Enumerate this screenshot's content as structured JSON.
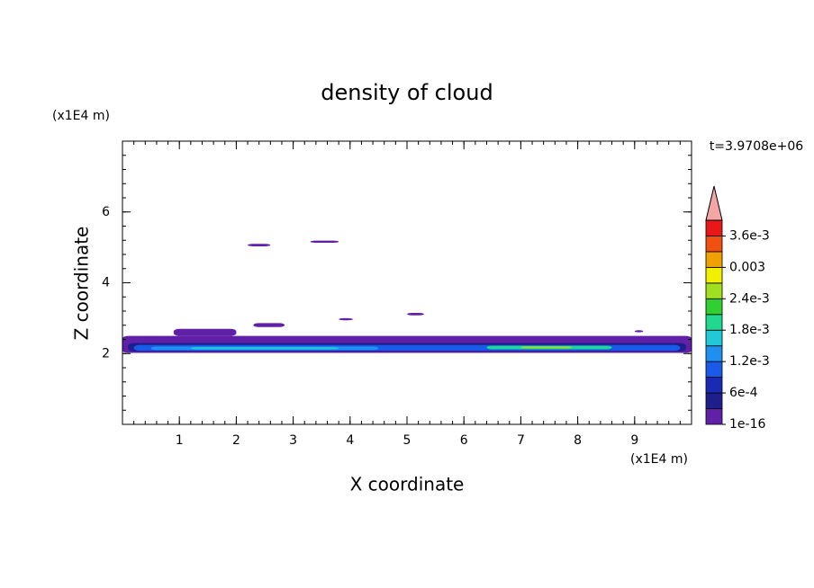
{
  "chart_data": {
    "type": "contour",
    "title": "density of cloud",
    "x_label": "X coordinate",
    "y_label": "Z coordinate",
    "x_unit": "(x1E4 m)",
    "y_unit": "(x1E4 m)",
    "time_label": "t=3.9708e+06",
    "xlim": [
      0,
      10
    ],
    "ylim": [
      0,
      8
    ],
    "xticks": [
      1,
      2,
      3,
      4,
      5,
      6,
      7,
      8,
      9
    ],
    "yticks": [
      2,
      4,
      6
    ],
    "regions": [
      {
        "x": [
          0,
          10
        ],
        "z": [
          2.02,
          2.5
        ],
        "value": 0.0001
      },
      {
        "x": [
          0.9,
          2.0
        ],
        "z": [
          2.5,
          2.7
        ],
        "value": 0.0001
      },
      {
        "x": [
          0.1,
          9.9
        ],
        "z": [
          2.06,
          2.3
        ],
        "value": 0.0004
      },
      {
        "x": [
          0.2,
          9.8
        ],
        "z": [
          2.08,
          2.24
        ],
        "value": 0.001
      },
      {
        "x": [
          0.5,
          4.5
        ],
        "z": [
          2.1,
          2.2
        ],
        "value": 0.0013
      },
      {
        "x": [
          1.2,
          3.8
        ],
        "z": [
          2.12,
          2.18
        ],
        "value": 0.0016
      },
      {
        "x": [
          6.4,
          8.6
        ],
        "z": [
          2.12,
          2.22
        ],
        "value": 0.0019
      },
      {
        "x": [
          7.0,
          7.9
        ],
        "z": [
          2.15,
          2.2
        ],
        "value": 0.0025
      },
      {
        "x": [
          2.2,
          2.6
        ],
        "z": [
          5.03,
          5.1
        ],
        "value": 0.0001
      },
      {
        "x": [
          3.3,
          3.8
        ],
        "z": [
          5.13,
          5.19
        ],
        "value": 0.0001
      },
      {
        "x": [
          2.3,
          2.85
        ],
        "z": [
          2.75,
          2.86
        ],
        "value": 0.0001
      },
      {
        "x": [
          3.8,
          4.05
        ],
        "z": [
          2.94,
          3.0
        ],
        "value": 0.0001
      },
      {
        "x": [
          5.0,
          5.3
        ],
        "z": [
          3.08,
          3.15
        ],
        "value": 0.0001
      },
      {
        "x": [
          9.0,
          9.15
        ],
        "z": [
          2.6,
          2.66
        ],
        "value": 0.0001
      }
    ],
    "colorbar": {
      "levels": [
        1e-16,
        0.0003,
        0.0006,
        0.0009,
        0.0012,
        0.0015,
        0.0018,
        0.0021,
        0.0024,
        0.0027,
        0.003,
        0.0033,
        0.0036,
        0.0039
      ],
      "colors": [
        "#6020a8",
        "#1e1e8c",
        "#1a2ab4",
        "#1a5ae8",
        "#1e90f0",
        "#20c8d8",
        "#20d890",
        "#30d030",
        "#a0e020",
        "#f0f000",
        "#f0a000",
        "#f05010",
        "#e81818"
      ],
      "ticks": [
        1e-16,
        {
          "value": 0.0006,
          "label": "6e-4"
        },
        {
          "value": 0.0012,
          "label": "1.2e-3"
        },
        {
          "value": 0.0018,
          "label": "1.8e-3"
        },
        {
          "value": 0.0024,
          "label": "2.4e-3"
        },
        0.003,
        {
          "value": 0.0036,
          "label": "3.6e-3"
        }
      ],
      "extend_color": "#f4a6a6"
    }
  }
}
